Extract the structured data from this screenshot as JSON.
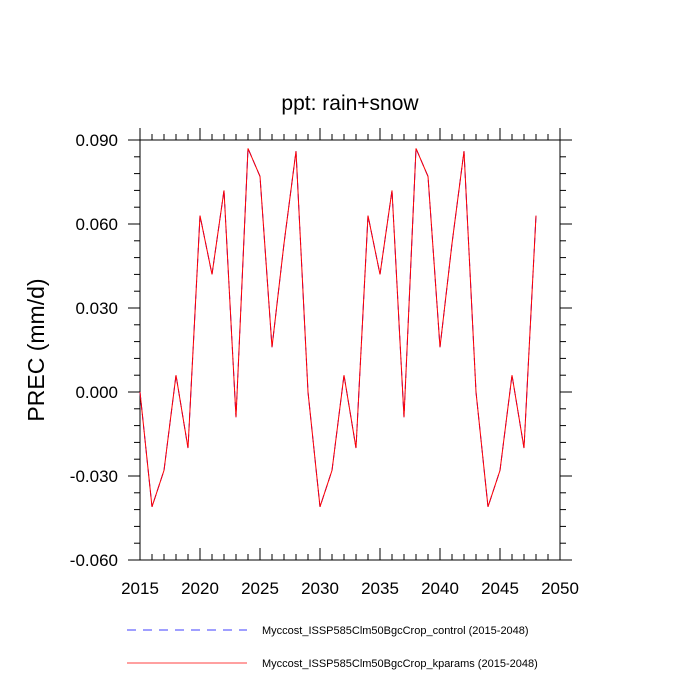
{
  "chart_data": {
    "type": "line",
    "title": "ppt: rain+snow",
    "xlabel": "",
    "ylabel": "PREC  (mm/d)",
    "xlim": [
      2015,
      2050
    ],
    "ylim": [
      -0.06,
      0.09
    ],
    "xticks": [
      2015,
      2020,
      2025,
      2030,
      2035,
      2040,
      2045,
      2050
    ],
    "xtick_labels": [
      "2015",
      "2020",
      "2025",
      "2030",
      "2035",
      "2040",
      "2045",
      "2050"
    ],
    "yticks": [
      -0.06,
      -0.03,
      0.0,
      0.03,
      0.06,
      0.09
    ],
    "ytick_labels": [
      "-0.060",
      "-0.030",
      "0.000",
      "0.030",
      "0.060",
      "0.090"
    ],
    "x": [
      2015,
      2016,
      2017,
      2018,
      2019,
      2020,
      2021,
      2022,
      2023,
      2024,
      2025,
      2026,
      2027,
      2028,
      2029,
      2030,
      2031,
      2032,
      2033,
      2034,
      2035,
      2036,
      2037,
      2038,
      2039,
      2040,
      2041,
      2042,
      2043,
      2044,
      2045,
      2046,
      2047,
      2048
    ],
    "series": [
      {
        "name": "Myccost_ISSP585Clm50BgcCrop_control (2015-2048)",
        "color": "#0000ff",
        "style": "dashed",
        "values": [
          0.0,
          -0.041,
          -0.028,
          0.006,
          -0.02,
          0.063,
          0.042,
          0.072,
          -0.009,
          0.087,
          0.077,
          0.016,
          0.053,
          0.086,
          0.0,
          -0.041,
          -0.028,
          0.006,
          -0.02,
          0.063,
          0.042,
          0.072,
          -0.009,
          0.087,
          0.077,
          0.016,
          0.053,
          0.086,
          0.0,
          -0.041,
          -0.028,
          0.006,
          -0.02,
          0.063
        ]
      },
      {
        "name": "Myccost_ISSP585Clm50BgcCrop_kparams (2015-2048)",
        "color": "#ff0000",
        "style": "solid",
        "values": [
          0.0,
          -0.041,
          -0.028,
          0.006,
          -0.02,
          0.063,
          0.042,
          0.072,
          -0.009,
          0.087,
          0.077,
          0.016,
          0.053,
          0.086,
          0.0,
          -0.041,
          -0.028,
          0.006,
          -0.02,
          0.063,
          0.042,
          0.072,
          -0.009,
          0.087,
          0.077,
          0.016,
          0.053,
          0.086,
          0.0,
          -0.041,
          -0.028,
          0.006,
          -0.02,
          0.063
        ]
      }
    ],
    "grid": false,
    "legend_position": "bottom"
  }
}
